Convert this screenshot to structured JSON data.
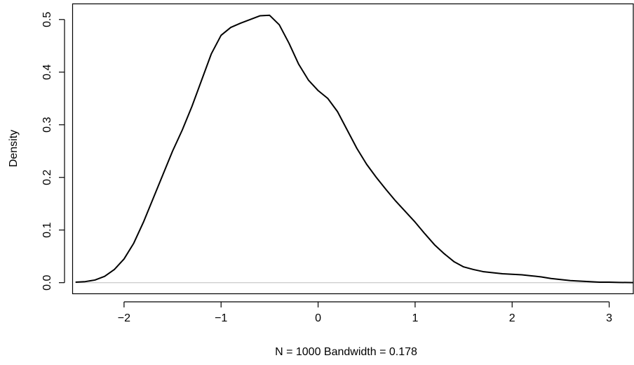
{
  "chart_data": {
    "type": "line",
    "title": "",
    "xlabel": "N = 1000   Bandwidth = 0.178",
    "ylabel": "Density",
    "xlim": [
      -2.534,
      3.256
    ],
    "ylim": [
      -0.0204,
      0.5304
    ],
    "x_ticks": [
      -2,
      -1,
      0,
      1,
      2,
      3
    ],
    "x_tick_labels": [
      "−2",
      "−1",
      "0",
      "1",
      "2",
      "3"
    ],
    "y_ticks": [
      0.0,
      0.1,
      0.2,
      0.3,
      0.4,
      0.5
    ],
    "y_tick_labels": [
      "0.0",
      "0.1",
      "0.2",
      "0.3",
      "0.4",
      "0.5"
    ],
    "baseline": 0,
    "grid": false,
    "legend": false,
    "colors": {
      "line": "#000000",
      "baseline": "#bebebe",
      "axes": "#000000"
    },
    "series": [
      {
        "x": [
          -2.5,
          -2.4,
          -2.3,
          -2.2,
          -2.1,
          -2.0,
          -1.9,
          -1.8,
          -1.7,
          -1.6,
          -1.5,
          -1.4,
          -1.3,
          -1.2,
          -1.1,
          -1.0,
          -0.9,
          -0.8,
          -0.7,
          -0.6,
          -0.5,
          -0.4,
          -0.3,
          -0.2,
          -0.1,
          0.0,
          0.1,
          0.2,
          0.3,
          0.4,
          0.5,
          0.6,
          0.7,
          0.8,
          0.9,
          1.0,
          1.1,
          1.2,
          1.3,
          1.4,
          1.5,
          1.6,
          1.7,
          1.8,
          1.9,
          2.0,
          2.1,
          2.2,
          2.3,
          2.4,
          2.5,
          2.6,
          2.7,
          2.8,
          2.9,
          3.0,
          3.1,
          3.2,
          3.25
        ],
        "values": [
          0.001,
          0.002,
          0.005,
          0.012,
          0.025,
          0.045,
          0.075,
          0.115,
          0.16,
          0.205,
          0.25,
          0.29,
          0.335,
          0.385,
          0.435,
          0.47,
          0.485,
          0.493,
          0.5,
          0.507,
          0.508,
          0.49,
          0.455,
          0.415,
          0.385,
          0.365,
          0.35,
          0.325,
          0.29,
          0.255,
          0.225,
          0.2,
          0.177,
          0.155,
          0.135,
          0.115,
          0.093,
          0.072,
          0.055,
          0.04,
          0.03,
          0.025,
          0.021,
          0.019,
          0.017,
          0.016,
          0.015,
          0.013,
          0.011,
          0.008,
          0.006,
          0.004,
          0.003,
          0.002,
          0.001,
          0.001,
          0.0005,
          0.0002,
          0.0001
        ]
      }
    ]
  }
}
